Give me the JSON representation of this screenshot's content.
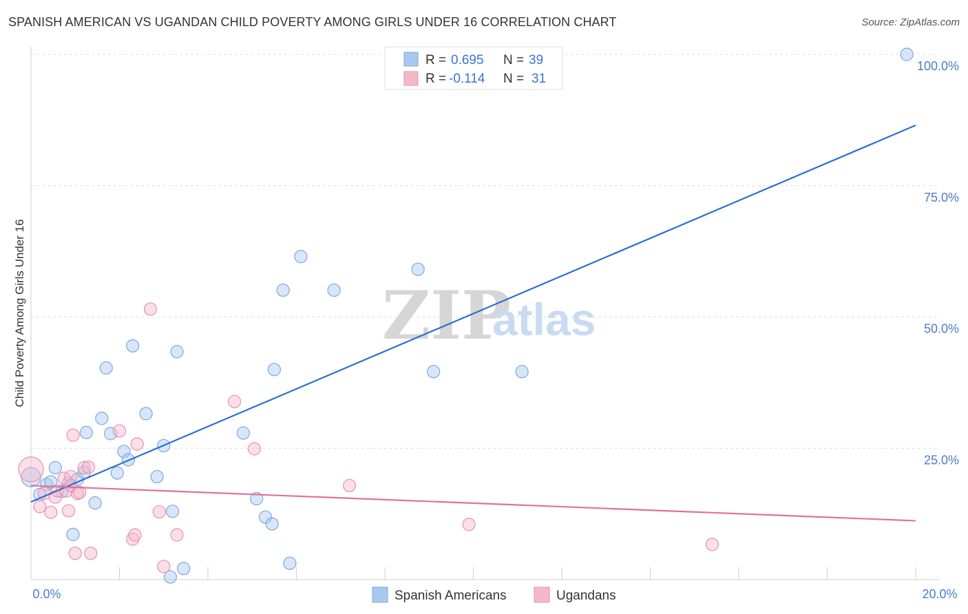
{
  "header": {
    "title": "SPANISH AMERICAN VS UGANDAN CHILD POVERTY AMONG GIRLS UNDER 16 CORRELATION CHART",
    "source": "Source: ZipAtlas.com"
  },
  "watermark": {
    "zip": "ZIP",
    "atlas": "atlas"
  },
  "legend": {
    "rows": [
      {
        "r_label": "R =",
        "r_value": "0.695",
        "n_label": "N =",
        "n_value": "39",
        "color": "#a8c8f0"
      },
      {
        "r_label": "R =",
        "r_value": "-0.114",
        "n_label": "N =",
        "n_value": "31",
        "color": "#f5b8cb"
      }
    ]
  },
  "bottom_legend": [
    {
      "label": "Spanish Americans",
      "color": "#a8c8f0"
    },
    {
      "label": "Ugandans",
      "color": "#f5b8cb"
    }
  ],
  "chart_data": {
    "type": "scatter",
    "title": "SPANISH AMERICAN VS UGANDAN CHILD POVERTY AMONG GIRLS UNDER 16 CORRELATION CHART",
    "xlabel": "",
    "ylabel": "Child Poverty Among Girls Under 16",
    "xlim": [
      0,
      20
    ],
    "ylim": [
      0,
      100
    ],
    "x_ticks": [
      "0.0%",
      "20.0%"
    ],
    "y_ticks": [
      "100.0%",
      "75.0%",
      "50.0%",
      "25.0%"
    ],
    "y_tick_values": [
      100,
      75,
      50,
      25
    ],
    "grid": true,
    "legend_position": "top-center",
    "series": [
      {
        "name": "Spanish Americans",
        "color": "#a8c8f0",
        "stroke": "#7aa8e0",
        "trend_color": "#2a6fd0",
        "trend": {
          "x": [
            0,
            20
          ],
          "y": [
            14.8,
            86.5
          ]
        },
        "points": [
          {
            "x": 0.0,
            "y": 19.5,
            "r": 14
          },
          {
            "x": 0.2,
            "y": 16.2,
            "r": 9
          },
          {
            "x": 0.35,
            "y": 18.1,
            "r": 9
          },
          {
            "x": 0.45,
            "y": 18.6,
            "r": 9
          },
          {
            "x": 0.55,
            "y": 21.3,
            "r": 9
          },
          {
            "x": 0.7,
            "y": 16.8,
            "r": 9
          },
          {
            "x": 0.85,
            "y": 18.4,
            "r": 9
          },
          {
            "x": 0.95,
            "y": 8.6,
            "r": 9
          },
          {
            "x": 1.05,
            "y": 19.1,
            "r": 9
          },
          {
            "x": 1.2,
            "y": 20.4,
            "r": 9
          },
          {
            "x": 1.25,
            "y": 28.0,
            "r": 9
          },
          {
            "x": 1.45,
            "y": 14.6,
            "r": 9
          },
          {
            "x": 1.6,
            "y": 30.7,
            "r": 9
          },
          {
            "x": 1.7,
            "y": 40.3,
            "r": 9
          },
          {
            "x": 1.8,
            "y": 27.8,
            "r": 9
          },
          {
            "x": 1.95,
            "y": 20.3,
            "r": 9
          },
          {
            "x": 2.1,
            "y": 24.4,
            "r": 9
          },
          {
            "x": 2.2,
            "y": 22.8,
            "r": 9
          },
          {
            "x": 2.3,
            "y": 44.5,
            "r": 9
          },
          {
            "x": 2.6,
            "y": 31.6,
            "r": 9
          },
          {
            "x": 2.85,
            "y": 19.6,
            "r": 9
          },
          {
            "x": 3.0,
            "y": 25.5,
            "r": 9
          },
          {
            "x": 3.15,
            "y": 0.5,
            "r": 9
          },
          {
            "x": 3.2,
            "y": 13.0,
            "r": 9
          },
          {
            "x": 3.3,
            "y": 43.4,
            "r": 9
          },
          {
            "x": 3.45,
            "y": 2.1,
            "r": 9
          },
          {
            "x": 4.8,
            "y": 27.9,
            "r": 9
          },
          {
            "x": 5.1,
            "y": 15.4,
            "r": 9
          },
          {
            "x": 5.3,
            "y": 11.9,
            "r": 9
          },
          {
            "x": 5.45,
            "y": 10.6,
            "r": 9
          },
          {
            "x": 5.5,
            "y": 40.0,
            "r": 9
          },
          {
            "x": 5.7,
            "y": 55.1,
            "r": 9
          },
          {
            "x": 5.85,
            "y": 3.1,
            "r": 9
          },
          {
            "x": 6.1,
            "y": 61.5,
            "r": 9
          },
          {
            "x": 6.85,
            "y": 55.1,
            "r": 9
          },
          {
            "x": 8.75,
            "y": 59.1,
            "r": 9
          },
          {
            "x": 9.1,
            "y": 39.6,
            "r": 9
          },
          {
            "x": 11.1,
            "y": 39.6,
            "r": 9
          },
          {
            "x": 19.8,
            "y": 100.0,
            "r": 9
          }
        ]
      },
      {
        "name": "Ugandans",
        "color": "#f5b8cb",
        "stroke": "#e890ad",
        "trend_color": "#e0709a",
        "trend": {
          "x": [
            0,
            20
          ],
          "y": [
            17.9,
            11.2
          ]
        },
        "points": [
          {
            "x": 0.0,
            "y": 21.0,
            "r": 18
          },
          {
            "x": 0.2,
            "y": 13.9,
            "r": 9
          },
          {
            "x": 0.3,
            "y": 16.4,
            "r": 9
          },
          {
            "x": 0.45,
            "y": 12.8,
            "r": 9
          },
          {
            "x": 0.55,
            "y": 15.7,
            "r": 9
          },
          {
            "x": 0.6,
            "y": 16.9,
            "r": 9
          },
          {
            "x": 0.75,
            "y": 19.3,
            "r": 9
          },
          {
            "x": 0.8,
            "y": 16.9,
            "r": 9
          },
          {
            "x": 0.85,
            "y": 13.1,
            "r": 9
          },
          {
            "x": 0.9,
            "y": 19.6,
            "r": 9
          },
          {
            "x": 0.9,
            "y": 17.9,
            "r": 9
          },
          {
            "x": 0.95,
            "y": 27.5,
            "r": 9
          },
          {
            "x": 1.0,
            "y": 5.0,
            "r": 9
          },
          {
            "x": 1.05,
            "y": 16.4,
            "r": 9
          },
          {
            "x": 1.1,
            "y": 16.6,
            "r": 9
          },
          {
            "x": 1.2,
            "y": 21.3,
            "r": 9
          },
          {
            "x": 1.3,
            "y": 21.4,
            "r": 9
          },
          {
            "x": 1.35,
            "y": 5.0,
            "r": 9
          },
          {
            "x": 2.0,
            "y": 28.3,
            "r": 9
          },
          {
            "x": 2.3,
            "y": 7.7,
            "r": 9
          },
          {
            "x": 2.35,
            "y": 8.5,
            "r": 9
          },
          {
            "x": 2.4,
            "y": 25.8,
            "r": 9
          },
          {
            "x": 2.7,
            "y": 51.5,
            "r": 9
          },
          {
            "x": 2.9,
            "y": 12.9,
            "r": 9
          },
          {
            "x": 3.0,
            "y": 2.5,
            "r": 9
          },
          {
            "x": 3.3,
            "y": 8.5,
            "r": 9
          },
          {
            "x": 4.6,
            "y": 33.9,
            "r": 9
          },
          {
            "x": 5.05,
            "y": 24.9,
            "r": 9
          },
          {
            "x": 7.2,
            "y": 17.9,
            "r": 9
          },
          {
            "x": 9.9,
            "y": 10.5,
            "r": 9
          },
          {
            "x": 15.4,
            "y": 6.7,
            "r": 9
          }
        ]
      }
    ]
  }
}
